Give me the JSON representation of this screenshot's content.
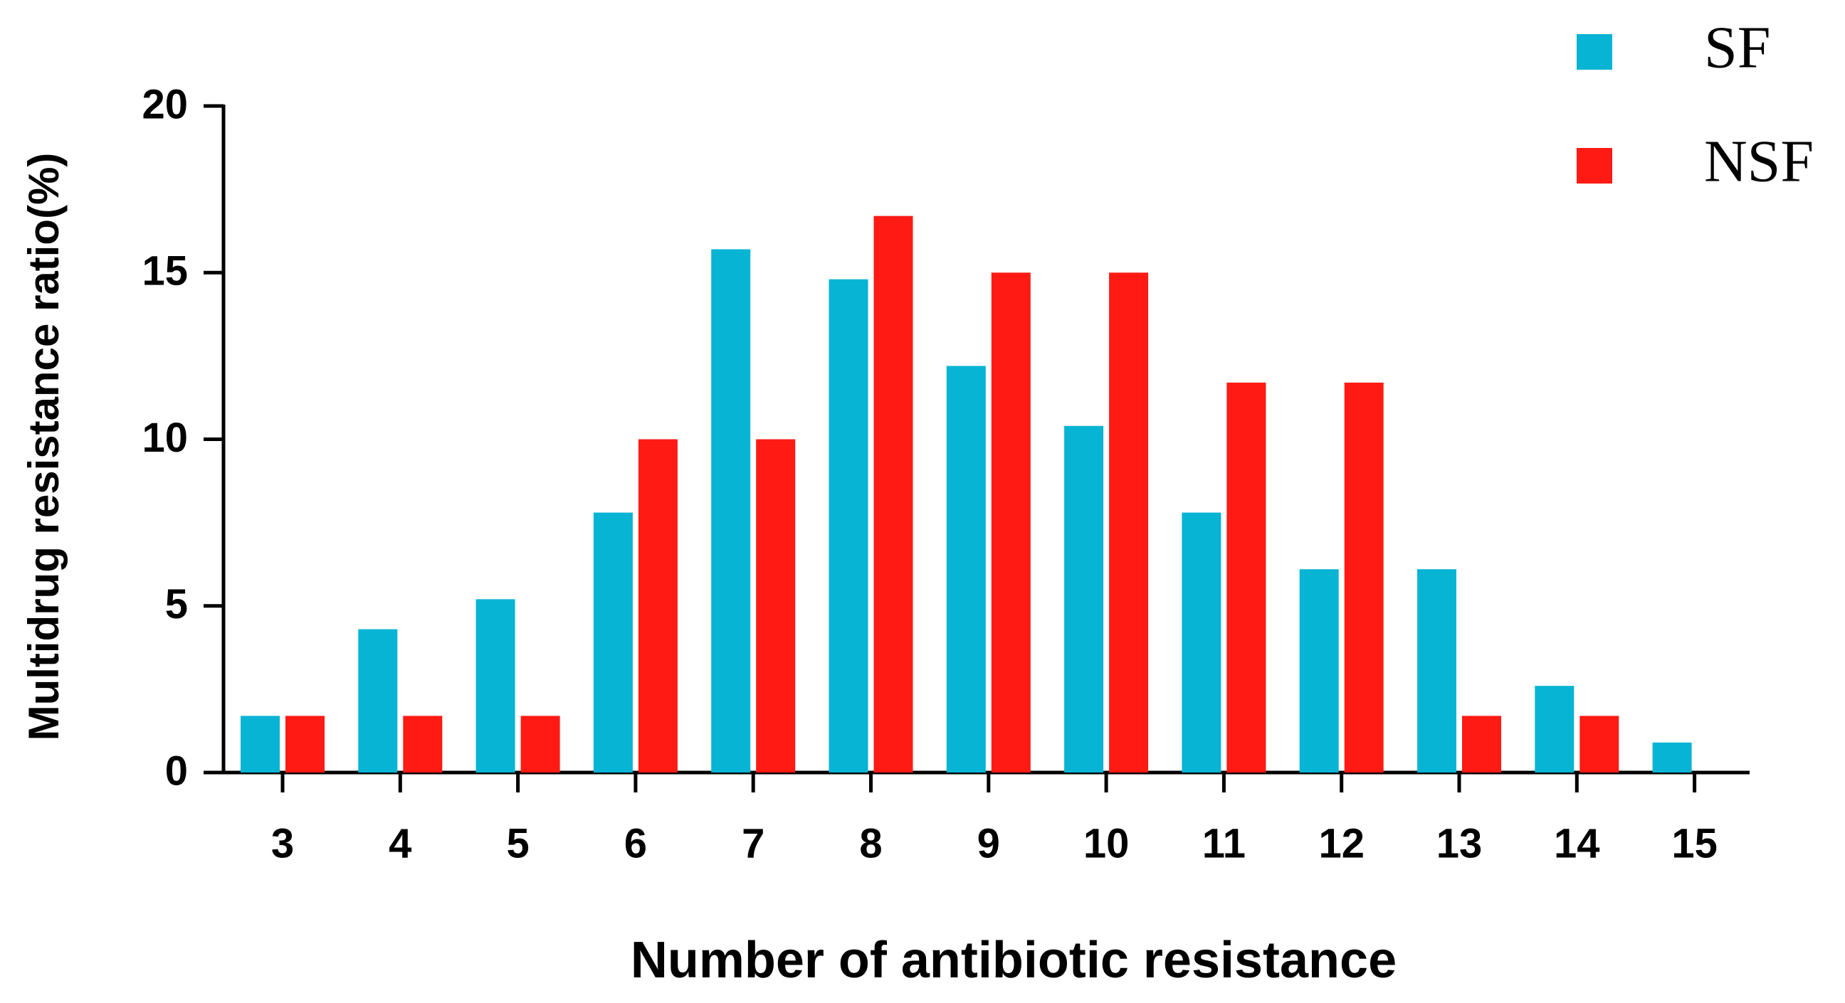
{
  "chart_data": {
    "type": "bar",
    "x_label": "Number of antibiotic resistance",
    "y_label": "Multidrug resistance ratio(%)",
    "categories": [
      "3",
      "4",
      "5",
      "6",
      "7",
      "8",
      "9",
      "10",
      "11",
      "12",
      "13",
      "14",
      "15"
    ],
    "series": [
      {
        "name": "SF",
        "color": "#08b4d4",
        "values": [
          1.7,
          4.3,
          5.2,
          7.8,
          15.7,
          14.8,
          12.2,
          10.4,
          7.8,
          6.1,
          6.1,
          2.6,
          0.9
        ]
      },
      {
        "name": "NSF",
        "color": "#ff1a14",
        "values": [
          1.7,
          1.7,
          1.7,
          10,
          10,
          16.7,
          15,
          15,
          11.7,
          11.7,
          1.7,
          1.7,
          null
        ]
      }
    ],
    "ylim": [
      0,
      20
    ],
    "yticks": [
      0,
      5,
      10,
      15,
      20
    ],
    "legend": "top-right"
  }
}
